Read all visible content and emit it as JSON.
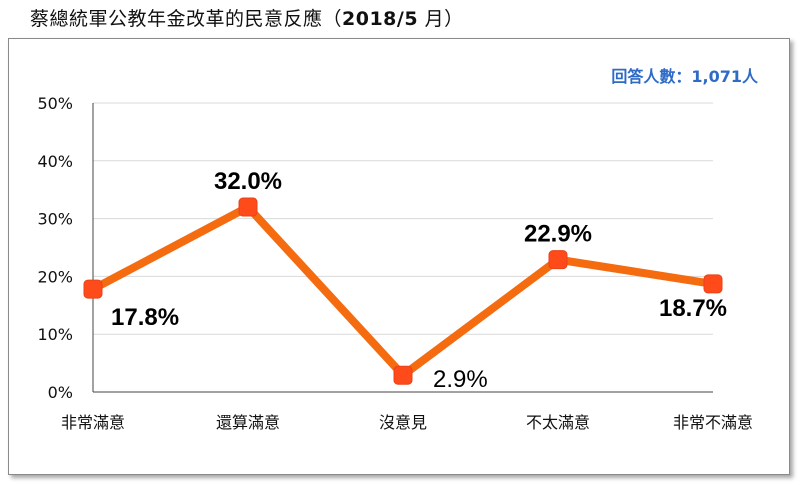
{
  "header": {
    "title_text": "蔡總統軍公教年金改革的民意反應（",
    "title_bold": "2018/5",
    "title_suffix": " 月）"
  },
  "note": {
    "respondents": "回答人數：1,071人"
  },
  "colors": {
    "line": "#f46b10",
    "marker": "#ff4a1a",
    "grid": "#d9d9d9",
    "note": "#2e6bc7"
  },
  "chart_data": {
    "type": "line",
    "title": "蔡總統軍公教年金改革的民意反應（2018/5 月）",
    "categories": [
      "非常滿意",
      "還算滿意",
      "沒意見",
      "不太滿意",
      "非常不滿意"
    ],
    "series": [
      {
        "values": [
          17.8,
          32.0,
          2.9,
          22.9,
          18.7
        ]
      }
    ],
    "data_labels": [
      "17.8%",
      "32.0%",
      "2.9%",
      "22.9%",
      "18.7%"
    ],
    "ylim": [
      0,
      50
    ],
    "yticks": [
      "0%",
      "10%",
      "20%",
      "30%",
      "40%",
      "50%"
    ],
    "grid": true,
    "xlabel": "",
    "ylabel": ""
  }
}
